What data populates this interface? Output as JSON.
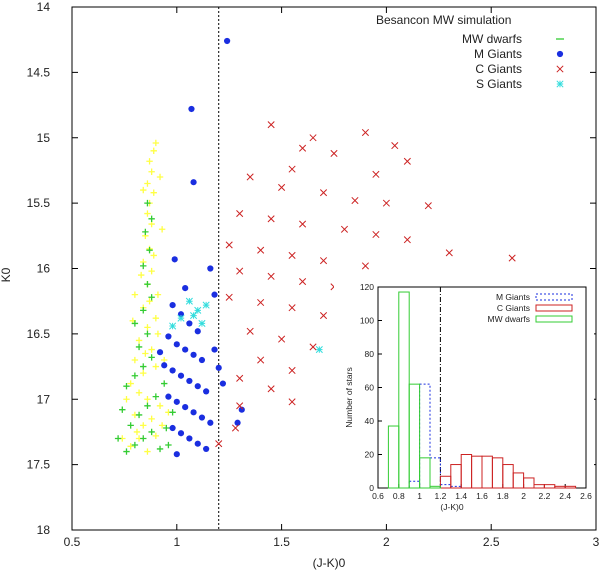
{
  "chart_data": [
    {
      "type": "scatter",
      "xlabel": "(J-K)0",
      "ylabel": "K0",
      "xlim": [
        0.5,
        3.0
      ],
      "ylim": [
        18,
        14
      ],
      "y_inverted": true,
      "xticks": [
        0.5,
        1.0,
        1.5,
        2.0,
        2.5,
        3.0
      ],
      "xtick_labels": [
        "0.5",
        "1",
        "1.5",
        "2",
        "2.5",
        "3"
      ],
      "yticks": [
        14,
        14.5,
        15,
        15.5,
        16,
        16.5,
        17,
        17.5,
        18
      ],
      "ytick_labels": [
        "14",
        "14.5",
        "15",
        "15.5",
        "16",
        "16.5",
        "17",
        "17.5",
        "18"
      ],
      "vline_x": 1.2,
      "legend_title": "Besancon MW simulation",
      "legend_position": "top-right",
      "series": [
        {
          "name": "MW dwarfs (background)",
          "legend": false,
          "marker": "plus",
          "color": "#ffff44",
          "points": [
            [
              0.78,
              17.36
            ],
            [
              0.82,
              17.3
            ],
            [
              0.86,
              17.4
            ],
            [
              0.9,
              17.28
            ],
            [
              0.84,
              17.2
            ],
            [
              0.8,
              17.12
            ],
            [
              0.88,
              17.15
            ],
            [
              0.92,
              17.05
            ],
            [
              0.86,
              17.0
            ],
            [
              0.82,
              16.95
            ],
            [
              0.78,
              16.88
            ],
            [
              0.84,
              16.8
            ],
            [
              0.9,
              16.75
            ],
            [
              0.88,
              16.62
            ],
            [
              0.82,
              16.55
            ],
            [
              0.86,
              16.45
            ],
            [
              0.9,
              16.38
            ],
            [
              0.84,
              16.3
            ],
            [
              0.8,
              16.2
            ],
            [
              0.86,
              16.12
            ],
            [
              0.88,
              16.02
            ],
            [
              0.84,
              15.95
            ],
            [
              0.87,
              15.85
            ],
            [
              0.85,
              15.75
            ],
            [
              0.88,
              15.66
            ],
            [
              0.86,
              15.58
            ],
            [
              0.87,
              15.5
            ],
            [
              0.89,
              15.42
            ],
            [
              0.86,
              15.35
            ],
            [
              0.88,
              15.26
            ],
            [
              0.87,
              15.18
            ],
            [
              0.89,
              15.1
            ],
            [
              0.9,
              15.04
            ],
            [
              0.92,
              15.3
            ],
            [
              0.93,
              15.7
            ],
            [
              0.91,
              16.2
            ],
            [
              0.94,
              16.7
            ],
            [
              0.96,
              17.1
            ],
            [
              0.76,
              17.0
            ],
            [
              0.74,
              17.3
            ],
            [
              0.8,
              16.7
            ],
            [
              0.79,
              16.4
            ],
            [
              0.83,
              16.05
            ],
            [
              0.84,
              15.4
            ],
            [
              0.89,
              15.9
            ],
            [
              0.91,
              16.5
            ],
            [
              0.93,
              17.2
            ],
            [
              0.81,
              17.25
            ],
            [
              0.85,
              16.65
            ],
            [
              0.87,
              16.25
            ]
          ]
        },
        {
          "name": "MW dwarfs",
          "legend": true,
          "marker": "plus",
          "color": "#33cc33",
          "points": [
            [
              0.76,
              17.4
            ],
            [
              0.8,
              17.35
            ],
            [
              0.84,
              17.3
            ],
            [
              0.88,
              17.25
            ],
            [
              0.92,
              17.38
            ],
            [
              0.78,
              17.2
            ],
            [
              0.82,
              17.12
            ],
            [
              0.86,
              17.05
            ],
            [
              0.9,
              16.98
            ],
            [
              0.76,
              16.9
            ],
            [
              0.8,
              16.82
            ],
            [
              0.84,
              16.75
            ],
            [
              0.88,
              16.68
            ],
            [
              0.82,
              16.6
            ],
            [
              0.86,
              16.5
            ],
            [
              0.8,
              16.42
            ],
            [
              0.84,
              16.32
            ],
            [
              0.88,
              16.22
            ],
            [
              0.86,
              16.12
            ],
            [
              0.84,
              15.98
            ],
            [
              0.87,
              15.86
            ],
            [
              0.85,
              15.72
            ],
            [
              0.88,
              15.62
            ],
            [
              0.86,
              15.5
            ],
            [
              0.95,
              17.22
            ],
            [
              0.98,
              17.1
            ],
            [
              0.74,
              17.08
            ],
            [
              0.94,
              16.88
            ],
            [
              0.72,
              17.3
            ],
            [
              0.96,
              17.35
            ]
          ]
        },
        {
          "name": "M Giants",
          "legend": true,
          "marker": "dot",
          "color": "#1a2ee0",
          "points": [
            [
              1.24,
              14.26
            ],
            [
              1.07,
              14.78
            ],
            [
              1.08,
              15.34
            ],
            [
              0.99,
              15.93
            ],
            [
              1.16,
              16.0
            ],
            [
              1.18,
              16.2
            ],
            [
              1.04,
              16.15
            ],
            [
              0.98,
              16.28
            ],
            [
              1.02,
              16.35
            ],
            [
              1.06,
              16.42
            ],
            [
              1.1,
              16.48
            ],
            [
              0.96,
              16.52
            ],
            [
              1.0,
              16.58
            ],
            [
              1.04,
              16.62
            ],
            [
              1.08,
              16.66
            ],
            [
              1.12,
              16.7
            ],
            [
              0.94,
              16.74
            ],
            [
              0.98,
              16.78
            ],
            [
              1.02,
              16.82
            ],
            [
              1.06,
              16.86
            ],
            [
              1.1,
              16.9
            ],
            [
              1.14,
              16.94
            ],
            [
              0.96,
              16.98
            ],
            [
              1.0,
              17.02
            ],
            [
              1.04,
              17.06
            ],
            [
              1.08,
              17.1
            ],
            [
              1.12,
              17.14
            ],
            [
              1.16,
              17.18
            ],
            [
              0.98,
              17.22
            ],
            [
              1.02,
              17.26
            ],
            [
              1.06,
              17.3
            ],
            [
              1.1,
              17.34
            ],
            [
              1.14,
              17.38
            ],
            [
              1.0,
              17.42
            ],
            [
              1.31,
              17.08
            ],
            [
              1.29,
              17.18
            ],
            [
              1.18,
              16.62
            ],
            [
              1.2,
              16.76
            ],
            [
              1.22,
              16.88
            ],
            [
              0.92,
              16.64
            ]
          ]
        },
        {
          "name": "C Giants",
          "legend": true,
          "marker": "x",
          "color": "#cc2222",
          "points": [
            [
              1.45,
              14.9
            ],
            [
              1.65,
              15.0
            ],
            [
              1.9,
              14.96
            ],
            [
              2.04,
              15.06
            ],
            [
              2.1,
              15.18
            ],
            [
              1.6,
              15.08
            ],
            [
              1.75,
              15.12
            ],
            [
              1.55,
              15.24
            ],
            [
              1.35,
              15.3
            ],
            [
              1.5,
              15.38
            ],
            [
              1.7,
              15.42
            ],
            [
              1.85,
              15.48
            ],
            [
              2.0,
              15.5
            ],
            [
              2.2,
              15.52
            ],
            [
              1.3,
              15.58
            ],
            [
              1.45,
              15.62
            ],
            [
              1.6,
              15.66
            ],
            [
              1.8,
              15.7
            ],
            [
              1.95,
              15.74
            ],
            [
              2.1,
              15.78
            ],
            [
              1.25,
              15.82
            ],
            [
              1.4,
              15.86
            ],
            [
              1.55,
              15.9
            ],
            [
              1.7,
              15.94
            ],
            [
              1.9,
              15.98
            ],
            [
              2.3,
              15.88
            ],
            [
              2.6,
              15.92
            ],
            [
              1.3,
              16.02
            ],
            [
              1.45,
              16.06
            ],
            [
              1.6,
              16.1
            ],
            [
              1.75,
              16.14
            ],
            [
              2.0,
              16.18
            ],
            [
              1.25,
              16.22
            ],
            [
              1.4,
              16.26
            ],
            [
              1.55,
              16.3
            ],
            [
              1.7,
              16.36
            ],
            [
              1.85,
              16.42
            ],
            [
              1.35,
              16.48
            ],
            [
              1.5,
              16.54
            ],
            [
              1.65,
              16.6
            ],
            [
              1.8,
              16.66
            ],
            [
              1.4,
              16.7
            ],
            [
              1.55,
              16.78
            ],
            [
              1.3,
              16.84
            ],
            [
              1.45,
              16.92
            ],
            [
              1.3,
              17.05
            ],
            [
              1.55,
              17.02
            ],
            [
              1.2,
              17.34
            ],
            [
              1.28,
              17.22
            ],
            [
              1.95,
              15.28
            ]
          ]
        },
        {
          "name": "S Giants",
          "legend": true,
          "marker": "star",
          "color": "#33dddd",
          "points": [
            [
              1.06,
              16.25
            ],
            [
              1.1,
              16.32
            ],
            [
              1.02,
              16.38
            ],
            [
              1.12,
              16.42
            ],
            [
              0.98,
              16.44
            ],
            [
              1.08,
              16.36
            ],
            [
              1.68,
              16.62
            ],
            [
              1.14,
              16.28
            ]
          ]
        }
      ]
    },
    {
      "type": "bar",
      "name": "inset histogram",
      "xlabel": "(J-K)0",
      "ylabel": "Number of stars",
      "xlim": [
        0.6,
        2.6
      ],
      "ylim": [
        0,
        120
      ],
      "xticks": [
        0.6,
        0.8,
        1.0,
        1.2,
        1.4,
        1.6,
        1.8,
        2.0,
        2.2,
        2.4,
        2.6
      ],
      "xtick_labels": [
        "0.6",
        "0.8",
        "1",
        "1.2",
        "1.4",
        "1.6",
        "1.8",
        "2",
        "2.2",
        "2.4",
        "2.6"
      ],
      "yticks": [
        0,
        20,
        40,
        60,
        80,
        100,
        120
      ],
      "ytick_labels": [
        "0",
        "20",
        "40",
        "60",
        "80",
        "100",
        "120"
      ],
      "vline_x": 1.2,
      "legend_position": "top-right",
      "bin_width": 0.1,
      "series": [
        {
          "name": "M Giants",
          "color": "#1a2ee0",
          "dash": "2,2",
          "bins": [
            [
              0.9,
              4
            ],
            [
              1.0,
              62
            ],
            [
              1.1,
              18
            ],
            [
              1.2,
              2
            ],
            [
              1.3,
              1
            ]
          ]
        },
        {
          "name": "C Giants",
          "color": "#cc2222",
          "dash": "",
          "bins": [
            [
              1.2,
              7
            ],
            [
              1.3,
              14
            ],
            [
              1.4,
              20
            ],
            [
              1.5,
              19
            ],
            [
              1.6,
              19
            ],
            [
              1.7,
              18
            ],
            [
              1.8,
              14
            ],
            [
              1.9,
              9
            ],
            [
              2.0,
              6
            ],
            [
              2.1,
              2
            ],
            [
              2.2,
              2
            ],
            [
              2.3,
              1
            ],
            [
              2.4,
              1
            ]
          ]
        },
        {
          "name": "MW dwarfs",
          "color": "#33cc33",
          "dash": "",
          "bins": [
            [
              0.7,
              37
            ],
            [
              0.8,
              117
            ],
            [
              0.9,
              62
            ],
            [
              1.0,
              18
            ],
            [
              1.1,
              1
            ]
          ]
        }
      ]
    }
  ]
}
